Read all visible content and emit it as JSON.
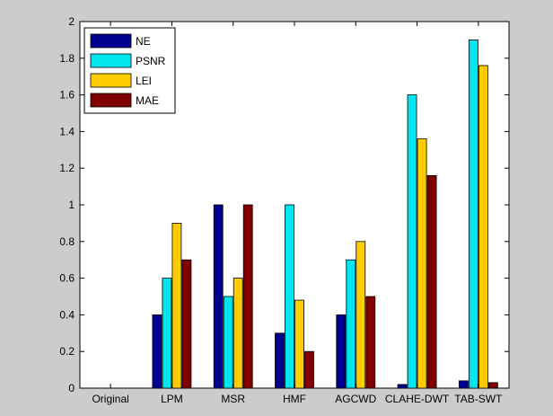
{
  "chart_data": {
    "type": "bar",
    "categories": [
      "Original",
      "LPM",
      "MSR",
      "HMF",
      "AGCWD",
      "CLAHE-DWT",
      "TAB-SWT"
    ],
    "series": [
      {
        "name": "NE",
        "color": "#00008f",
        "values": [
          0,
          0.4,
          1.0,
          0.3,
          0.4,
          0.02,
          0.04
        ]
      },
      {
        "name": "PSNR",
        "color": "#00e5ee",
        "values": [
          0,
          0.6,
          0.5,
          1.0,
          0.7,
          1.6,
          1.9
        ]
      },
      {
        "name": "LEI",
        "color": "#ffcc00",
        "values": [
          0,
          0.9,
          0.6,
          0.48,
          0.8,
          1.36,
          1.76
        ]
      },
      {
        "name": "MAE",
        "color": "#800000",
        "values": [
          0,
          0.7,
          1.0,
          0.2,
          0.5,
          1.16,
          0.03
        ]
      }
    ],
    "yticks": [
      "0",
      "0.2",
      "0.4",
      "0.6",
      "0.8",
      "1",
      "1.2",
      "1.4",
      "1.6",
      "1.8",
      "2"
    ],
    "ylim": [
      0,
      2
    ],
    "title": "",
    "xlabel": "",
    "ylabel": "",
    "legend_position": "top-left",
    "grid": false
  },
  "figure_background": "#cccccc",
  "axes_background": "#ffffff"
}
